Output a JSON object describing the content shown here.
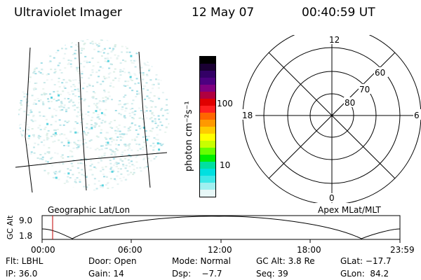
{
  "header": {
    "instrument": "Ultraviolet Imager",
    "date": "12 May 07",
    "time": "00:40:59 UT"
  },
  "colorbar": {
    "unit_label": "photon cm⁻²s⁻¹",
    "ticks": [
      "100",
      "10"
    ],
    "colors": [
      "#000000",
      "#1a0033",
      "#330066",
      "#4d0080",
      "#800080",
      "#b00040",
      "#e00000",
      "#ff2020",
      "#ff6600",
      "#ff9900",
      "#ffcc00",
      "#ffff00",
      "#c8ff00",
      "#66ff00",
      "#00ee00",
      "#00e0a0",
      "#00e0e0",
      "#40e8e8",
      "#a0f0f0",
      "#e8f8f8"
    ]
  },
  "polar": {
    "mlt_labels": [
      "12",
      "18",
      "6",
      "0"
    ],
    "lat_labels": [
      "60",
      "70",
      "80"
    ]
  },
  "labels": {
    "geo": "Geographic Lat/Lon",
    "apex": "Apex MLat/MLT",
    "gc_alt_axis": "GC Alt",
    "alt_max": "9.0",
    "alt_min": "1.8"
  },
  "timeline": {
    "ticks": [
      "00:00",
      "06:00",
      "12:00",
      "18:00",
      "23:59"
    ],
    "marker_time": "00:40:59"
  },
  "footer": {
    "row1": [
      "Flt: LBHL",
      "Door: Open",
      "Mode: Normal",
      "GC Alt: 3.8 Re",
      "GLat: −17.7"
    ],
    "row2": [
      "IP: 36.0",
      "Gain: 14",
      "Dsp:    −7.7",
      "Seq: 39",
      "GLon:  84.2"
    ]
  }
}
